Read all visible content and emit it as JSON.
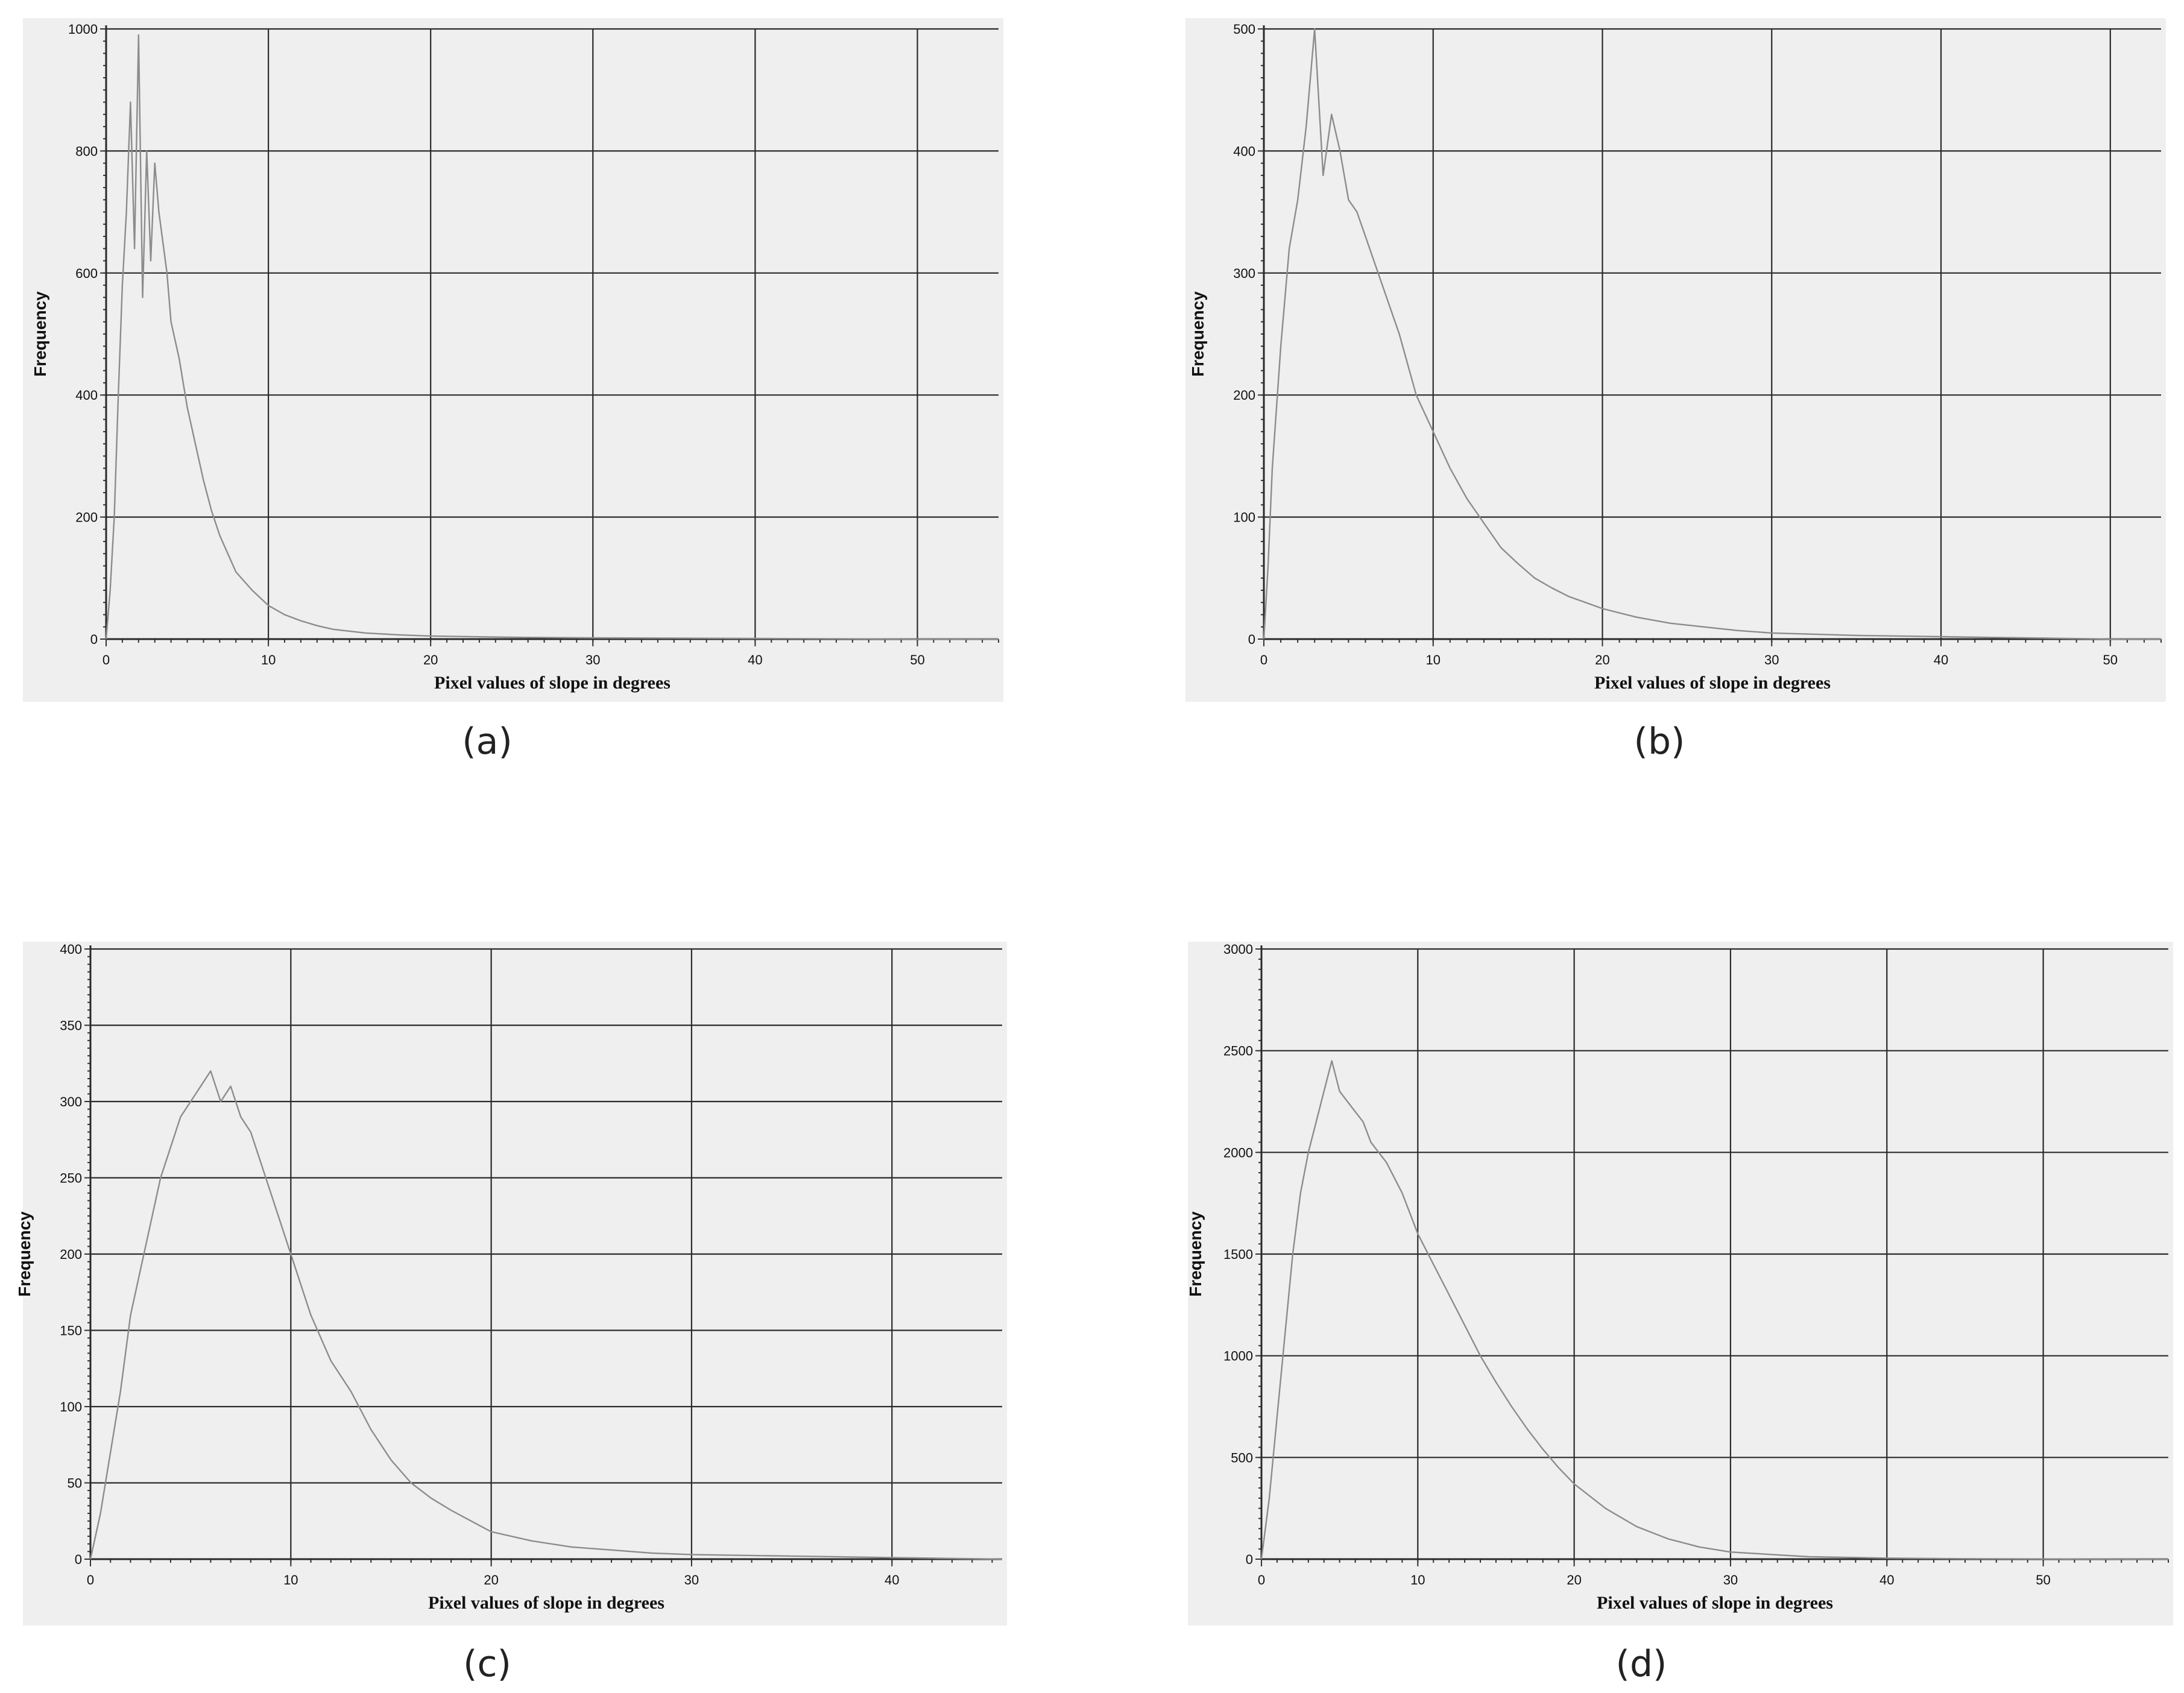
{
  "chart_data": [
    {
      "type": "line",
      "caption": "(a)",
      "xlabel": "Pixel values of slope in degrees",
      "ylabel": "Frequency",
      "xlim": [
        0,
        55
      ],
      "ylim": [
        0,
        1000
      ],
      "xticks": [
        0,
        10,
        20,
        30,
        40,
        50
      ],
      "yticks": [
        0,
        200,
        400,
        600,
        800,
        1000
      ],
      "grid": true,
      "series": [
        {
          "x": [
            0,
            0.25,
            0.5,
            0.75,
            1,
            1.25,
            1.5,
            1.75,
            2,
            2.25,
            2.5,
            2.75,
            3,
            3.25,
            3.5,
            3.75,
            4,
            4.5,
            5,
            5.5,
            6,
            6.5,
            7,
            7.5,
            8,
            9,
            10,
            11,
            12,
            13,
            14,
            16,
            18,
            20,
            25,
            30,
            40,
            50,
            55
          ],
          "y": [
            0,
            80,
            200,
            400,
            580,
            700,
            880,
            640,
            990,
            560,
            800,
            620,
            780,
            700,
            650,
            600,
            520,
            460,
            380,
            320,
            260,
            210,
            170,
            140,
            110,
            80,
            55,
            40,
            30,
            22,
            16,
            10,
            7,
            5,
            3,
            2,
            1,
            0,
            0
          ]
        }
      ]
    },
    {
      "type": "line",
      "caption": "(b)",
      "xlabel": "Pixel values of slope in degrees",
      "ylabel": "Frequency",
      "xlim": [
        0,
        53
      ],
      "ylim": [
        0,
        500
      ],
      "xticks": [
        0,
        10,
        20,
        30,
        40,
        50
      ],
      "yticks": [
        0,
        100,
        200,
        300,
        400,
        500
      ],
      "grid": true,
      "series": [
        {
          "x": [
            0,
            0.25,
            0.5,
            1,
            1.5,
            2,
            2.5,
            3,
            3.5,
            4,
            4.5,
            5,
            5.5,
            6,
            7,
            8,
            9,
            10,
            11,
            12,
            13,
            14,
            15,
            16,
            17,
            18,
            19,
            20,
            22,
            24,
            26,
            28,
            30,
            35,
            40,
            45,
            50,
            53
          ],
          "y": [
            0,
            60,
            140,
            240,
            320,
            360,
            420,
            500,
            380,
            430,
            400,
            360,
            350,
            330,
            290,
            250,
            200,
            170,
            140,
            115,
            95,
            75,
            62,
            50,
            42,
            35,
            30,
            25,
            18,
            13,
            10,
            7,
            5,
            3,
            2,
            1,
            0,
            0
          ]
        }
      ]
    },
    {
      "type": "line",
      "caption": "(c)",
      "xlabel": "Pixel values of slope in degrees",
      "ylabel": "Frequency",
      "xlim": [
        0,
        45.5
      ],
      "ylim": [
        0,
        400
      ],
      "xticks": [
        0,
        10,
        20,
        30,
        40
      ],
      "yticks": [
        0,
        50,
        100,
        150,
        200,
        250,
        300,
        350,
        400
      ],
      "grid": true,
      "series": [
        {
          "x": [
            0,
            0.5,
            1,
            1.5,
            2,
            2.5,
            3,
            3.5,
            4,
            4.5,
            5,
            5.5,
            6,
            6.5,
            7,
            7.5,
            8,
            8.5,
            9,
            9.5,
            10,
            11,
            12,
            13,
            14,
            15,
            16,
            17,
            18,
            19,
            20,
            22,
            24,
            26,
            28,
            30,
            35,
            40,
            45.5
          ],
          "y": [
            0,
            30,
            70,
            110,
            160,
            190,
            220,
            250,
            270,
            290,
            300,
            310,
            320,
            300,
            310,
            290,
            280,
            260,
            240,
            220,
            200,
            160,
            130,
            110,
            85,
            65,
            50,
            40,
            32,
            25,
            18,
            12,
            8,
            6,
            4,
            3,
            2,
            1,
            0
          ]
        }
      ]
    },
    {
      "type": "line",
      "caption": "(d)",
      "xlabel": "Pixel values of slope in degrees",
      "ylabel": "Frequency",
      "xlim": [
        0,
        58
      ],
      "ylim": [
        0,
        3000
      ],
      "xticks": [
        0,
        10,
        20,
        30,
        40,
        50
      ],
      "yticks": [
        0,
        500,
        1000,
        1500,
        2000,
        2500,
        3000
      ],
      "grid": true,
      "series": [
        {
          "x": [
            0,
            0.5,
            1,
            1.5,
            2,
            2.5,
            3,
            3.5,
            4,
            4.5,
            5,
            5.5,
            6,
            6.5,
            7,
            8,
            9,
            10,
            11,
            12,
            13,
            14,
            15,
            16,
            17,
            18,
            19,
            20,
            22,
            24,
            26,
            28,
            30,
            35,
            40,
            45,
            50,
            58
          ],
          "y": [
            0,
            300,
            700,
            1100,
            1500,
            1800,
            2000,
            2150,
            2300,
            2450,
            2300,
            2250,
            2200,
            2150,
            2050,
            1950,
            1800,
            1600,
            1450,
            1300,
            1150,
            1000,
            870,
            750,
            640,
            540,
            450,
            370,
            250,
            160,
            100,
            60,
            35,
            12,
            5,
            2,
            1,
            0
          ]
        }
      ]
    }
  ]
}
